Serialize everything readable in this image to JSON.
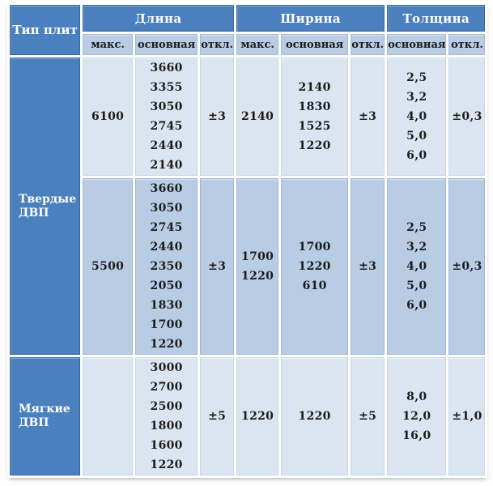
{
  "colors": {
    "header_blue": "#4a80bd",
    "subheader_blue": "#b8cce4",
    "row_light": "#dbe5f1",
    "row_medium": "#b8cce4",
    "border_white": "#ffffff",
    "text_dark": "#1b1b1b",
    "text_white": "#ffffff"
  },
  "table": {
    "corner_label": "Тип плит",
    "groups": [
      {
        "label": "Длина",
        "cols": [
          "макс.",
          "основная",
          "откл."
        ]
      },
      {
        "label": "Ширина",
        "cols": [
          "макс.",
          "основная",
          "откл."
        ]
      },
      {
        "label": "Толщина",
        "cols": [
          "основная",
          "откл."
        ]
      }
    ],
    "row_groups": [
      {
        "type_label": "Твердые ДВП",
        "blocks": [
          {
            "length": {
              "max": [
                "6100"
              ],
              "main": [
                "3660",
                "3355",
                "3050",
                "2745",
                "2440",
                "2140"
              ],
              "dev": "±3"
            },
            "width": {
              "max": [
                "2140"
              ],
              "main": [
                "2140",
                "1830",
                "1525",
                "1220"
              ],
              "dev": "±3"
            },
            "thickness": {
              "main": [
                "2,5",
                "3,2",
                "4,0",
                "5,0",
                "6,0"
              ],
              "dev": "±0,3"
            }
          },
          {
            "length": {
              "max": [
                "5500"
              ],
              "main": [
                "3660",
                "3050",
                "2745",
                "2440",
                "2350",
                "2050",
                "1830",
                "1700",
                "1220"
              ],
              "dev": "±3"
            },
            "width": {
              "max": [
                "1700",
                "1220"
              ],
              "main": [
                "1700",
                "1220",
                "610"
              ],
              "dev": "±3"
            },
            "thickness": {
              "main": [
                "2,5",
                "3,2",
                "4,0",
                "5,0",
                "6,0"
              ],
              "dev": "±0,3"
            }
          }
        ]
      },
      {
        "type_label": "Мягкие ДВП",
        "blocks": [
          {
            "length": {
              "max": [],
              "main": [
                "3000",
                "2700",
                "2500",
                "1800",
                "1600",
                "1220"
              ],
              "dev": "±5"
            },
            "width": {
              "max": [
                "1220"
              ],
              "main": [
                "1220"
              ],
              "dev": "±5"
            },
            "thickness": {
              "main": [
                "8,0",
                "12,0",
                "16,0"
              ],
              "dev": "±1,0"
            }
          }
        ]
      }
    ]
  },
  "chart_data": {
    "type": "table",
    "title": "",
    "columns": [
      "Тип плит",
      "Длина макс.",
      "Длина основная",
      "Длина откл.",
      "Ширина макс.",
      "Ширина основная",
      "Ширина откл.",
      "Толщина основная",
      "Толщина откл."
    ],
    "rows": [
      [
        "Твердые ДВП",
        "6100",
        "3660, 3355, 3050, 2745, 2440, 2140",
        "±3",
        "2140",
        "2140, 1830, 1525, 1220",
        "±3",
        "2,5, 3,2, 4,0, 5,0, 6,0",
        "±0,3"
      ],
      [
        "Твердые ДВП",
        "5500",
        "3660, 3050, 2745, 2440, 2350, 2050, 1830, 1700, 1220",
        "±3",
        "1700, 1220",
        "1700, 1220, 610",
        "±3",
        "2,5, 3,2, 4,0, 5,0, 6,0",
        "±0,3"
      ],
      [
        "Мягкие ДВП",
        "",
        "3000, 2700, 2500, 1800, 1600, 1220",
        "±5",
        "1220",
        "1220",
        "±5",
        "8,0, 12,0, 16,0",
        "±1,0"
      ]
    ]
  }
}
